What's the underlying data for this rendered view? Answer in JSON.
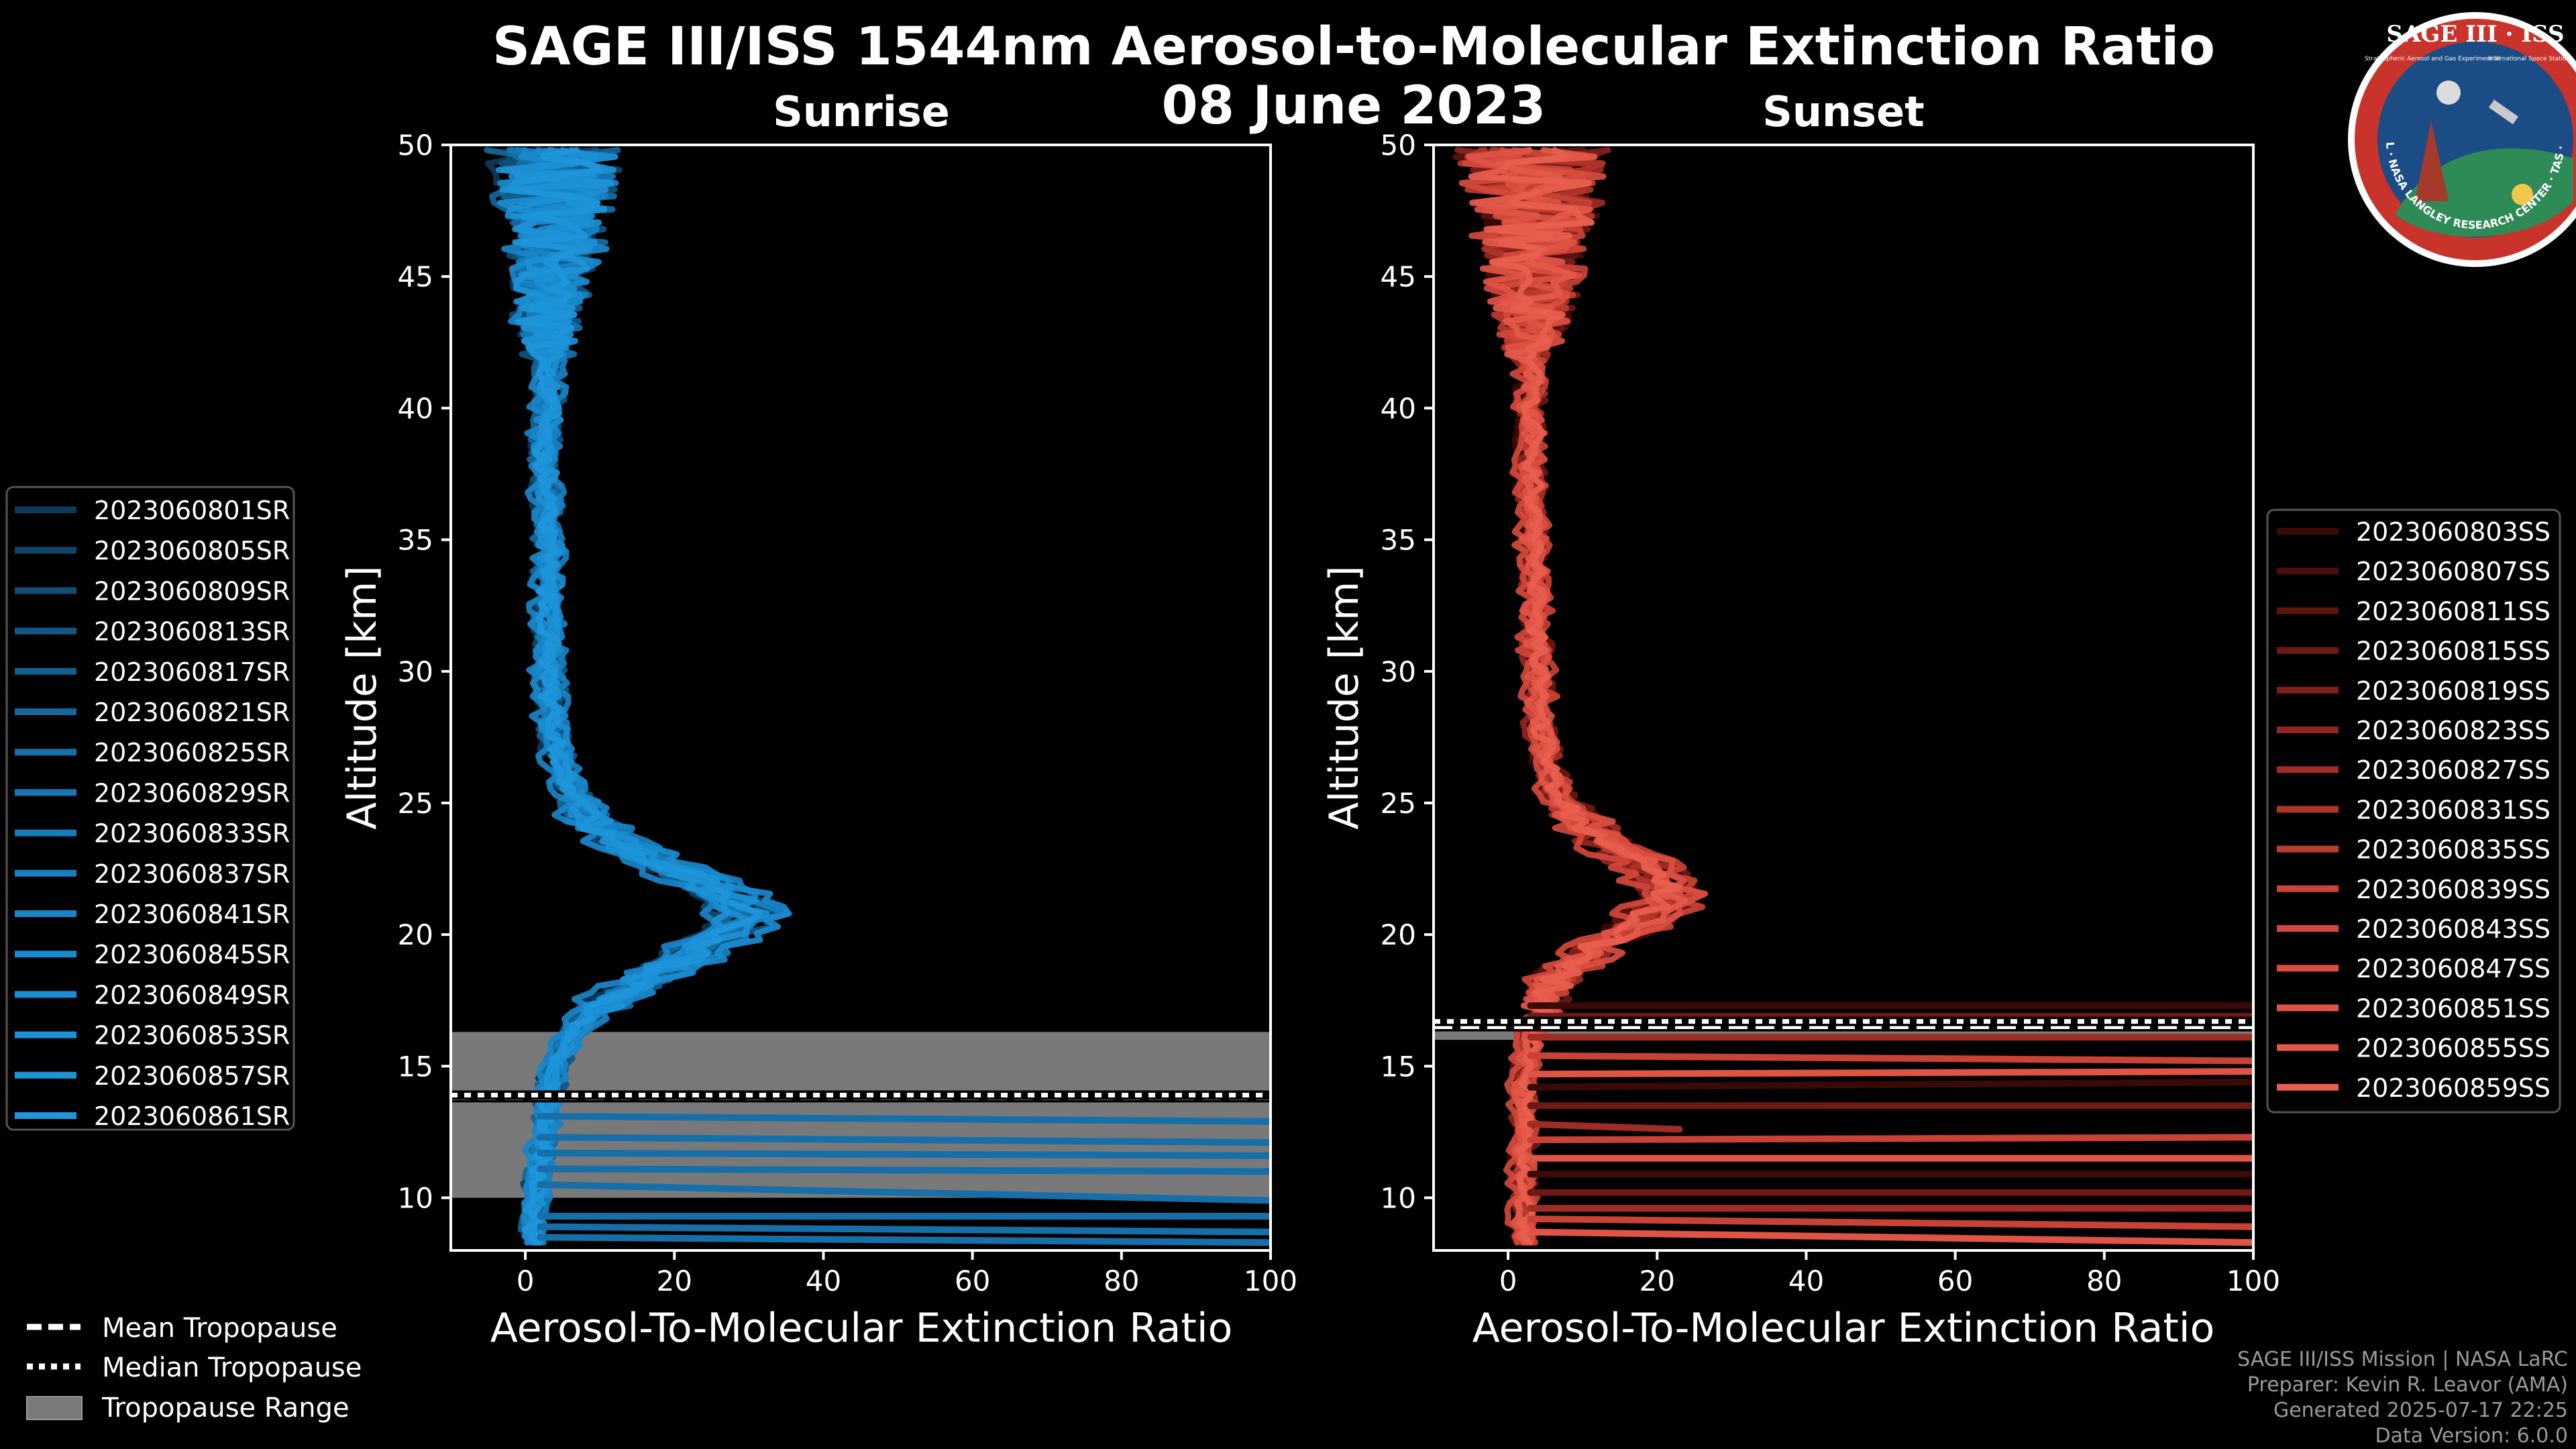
{
  "title": "SAGE III/ISS 1544nm Aerosol-to-Molecular Extinction Ratio",
  "date": "08 June 2023",
  "logo": {
    "name": "SAGE III · ISS",
    "subtitle_left": "Stratospheric Aerosol and Gas Experiment III",
    "subtitle_right": "International Space Station",
    "ring_text": "BALL · NASA LANGLEY RESEARCH CENTER · TAS · ESA"
  },
  "credits": [
    "SAGE III/ISS Mission | NASA LaRC",
    "Preparer: Kevin R. Leavor (AMA)",
    "Generated 2025-07-17 22:25",
    "Data Version: 6.0.0"
  ],
  "tropopause_legend": [
    {
      "label": "Mean Tropopause",
      "style": "dashed"
    },
    {
      "label": "Median Tropopause",
      "style": "dotted"
    },
    {
      "label": "Tropopause Range",
      "style": "patch"
    }
  ],
  "chart_data": [
    {
      "type": "line",
      "title": "Sunrise",
      "xlabel": "Aerosol-To-Molecular Extinction Ratio",
      "ylabel": "Altitude [km]",
      "xlim": [
        -10,
        100
      ],
      "ylim": [
        8,
        50
      ],
      "xticks": [
        0,
        20,
        40,
        60,
        80,
        100
      ],
      "yticks": [
        10,
        15,
        20,
        25,
        30,
        35,
        40,
        45,
        50
      ],
      "color": "#1f8fd0",
      "tropopause": {
        "mean": 13.8,
        "median": 13.9,
        "min": 10.0,
        "max": 16.3
      },
      "altitude": [
        8.5,
        9.5,
        10.5,
        11.5,
        12.5,
        13.5,
        14.5,
        15.5,
        16.5,
        17.5,
        18.5,
        19.5,
        20.5,
        21.5,
        22.5,
        23.5,
        24.5,
        25.5,
        26.5,
        28,
        30,
        32,
        34,
        36,
        38,
        40,
        42,
        44,
        46,
        48,
        50
      ],
      "mean_profile": [
        1,
        1,
        1.5,
        2,
        2.5,
        3,
        3.5,
        4.5,
        7,
        11,
        17,
        24,
        29,
        27,
        20,
        12,
        8,
        6,
        4.5,
        3.5,
        3,
        3,
        3,
        3,
        2.5,
        3,
        3,
        3,
        4,
        4,
        4
      ],
      "spike_amplitude": 6,
      "series": [
        {
          "name": "2023060801SR",
          "shift": -2.0,
          "scale": 0.95,
          "color": "#0d3a5c"
        },
        {
          "name": "2023060805SR",
          "shift": 1.0,
          "scale": 1.05,
          "color": "#0f4468"
        },
        {
          "name": "2023060809SR",
          "shift": -1.0,
          "scale": 0.9,
          "color": "#104e76"
        },
        {
          "name": "2023060813SR",
          "shift": 2.0,
          "scale": 1.1,
          "color": "#125783"
        },
        {
          "name": "2023060817SR",
          "shift": 0.0,
          "scale": 1.0,
          "color": "#136090"
        },
        {
          "name": "2023060821SR",
          "shift": -1.5,
          "scale": 0.92,
          "color": "#14689c"
        },
        {
          "name": "2023060825SR",
          "shift": 1.5,
          "scale": 1.08,
          "color": "#1570a8"
        },
        {
          "name": "2023060829SR",
          "shift": 0.5,
          "scale": 0.98,
          "color": "#1676b2"
        },
        {
          "name": "2023060833SR",
          "shift": -0.5,
          "scale": 1.02,
          "color": "#177cbb"
        },
        {
          "name": "2023060837SR",
          "shift": 2.5,
          "scale": 1.12,
          "color": "#1881c3"
        },
        {
          "name": "2023060841SR",
          "shift": -2.5,
          "scale": 0.88,
          "color": "#1986ca"
        },
        {
          "name": "2023060845SR",
          "shift": 1.0,
          "scale": 1.15,
          "color": "#1a8acf"
        },
        {
          "name": "2023060849SR",
          "shift": -1.0,
          "scale": 1.0,
          "color": "#1b8dd2"
        },
        {
          "name": "2023060853SR",
          "shift": 0.0,
          "scale": 1.06,
          "color": "#1c90d5"
        },
        {
          "name": "2023060857SR",
          "shift": 1.5,
          "scale": 0.94,
          "color": "#1d93d8"
        },
        {
          "name": "2023060861SR",
          "shift": -0.5,
          "scale": 1.03,
          "color": "#1e96da"
        }
      ],
      "low_level_excursions": [
        {
          "y0": 13.1,
          "y1": 12.9,
          "x1": 100
        },
        {
          "y0": 12.3,
          "y1": 12.1,
          "x1": 100
        },
        {
          "y0": 11.7,
          "y1": 11.6,
          "x1": 100
        },
        {
          "y0": 11.1,
          "y1": 11.0,
          "x1": 100
        },
        {
          "y0": 10.5,
          "y1": 9.9,
          "x1": 100
        },
        {
          "y0": 9.3,
          "y1": 9.3,
          "x1": 100
        },
        {
          "y0": 8.9,
          "y1": 8.7,
          "x1": 100
        },
        {
          "y0": 8.5,
          "y1": 8.3,
          "x1": 100
        }
      ]
    },
    {
      "type": "line",
      "title": "Sunset",
      "xlabel": "Aerosol-To-Molecular Extinction Ratio",
      "ylabel": "Altitude [km]",
      "xlim": [
        -10,
        100
      ],
      "ylim": [
        8,
        50
      ],
      "xticks": [
        0,
        20,
        40,
        60,
        80,
        100
      ],
      "yticks": [
        10,
        15,
        20,
        25,
        30,
        35,
        40,
        45,
        50
      ],
      "color": "#e5584a",
      "tropopause": {
        "mean": 16.5,
        "median": 16.7,
        "min": 16.0,
        "max": 16.8
      },
      "altitude": [
        8.5,
        9.5,
        10.5,
        11.5,
        12.5,
        13.5,
        14.5,
        15.5,
        16.5,
        17.5,
        18.5,
        19.5,
        20.5,
        21.5,
        22.5,
        23.5,
        24.5,
        25.5,
        26.5,
        28,
        30,
        32,
        34,
        36,
        38,
        40,
        42,
        44,
        46,
        48,
        50
      ],
      "mean_profile": [
        2,
        2,
        2,
        2,
        2,
        2,
        2,
        2.5,
        3,
        4.5,
        7,
        12,
        18,
        22,
        19,
        13,
        9,
        6,
        5,
        4,
        4,
        3.5,
        3.5,
        3,
        3,
        3,
        3,
        3,
        3,
        3.5,
        3.5
      ],
      "spike_amplitude": 7,
      "series": [
        {
          "name": "2023060803SS",
          "shift": -2.0,
          "scale": 0.95,
          "color": "#3a0a09"
        },
        {
          "name": "2023060807SS",
          "shift": 1.0,
          "scale": 1.05,
          "color": "#4a0e0c"
        },
        {
          "name": "2023060811SS",
          "shift": -1.0,
          "scale": 0.9,
          "color": "#5c1410"
        },
        {
          "name": "2023060815SS",
          "shift": 2.0,
          "scale": 1.1,
          "color": "#6d1914"
        },
        {
          "name": "2023060819SS",
          "shift": 0.0,
          "scale": 1.0,
          "color": "#7f1f19"
        },
        {
          "name": "2023060823SS",
          "shift": -1.5,
          "scale": 0.92,
          "color": "#90261e"
        },
        {
          "name": "2023060827SS",
          "shift": 1.5,
          "scale": 1.08,
          "color": "#a02d24"
        },
        {
          "name": "2023060831SS",
          "shift": 0.5,
          "scale": 0.98,
          "color": "#af3429"
        },
        {
          "name": "2023060835SS",
          "shift": -0.5,
          "scale": 1.02,
          "color": "#bc3b2f"
        },
        {
          "name": "2023060839SS",
          "shift": 2.5,
          "scale": 1.12,
          "color": "#c84235"
        },
        {
          "name": "2023060843SS",
          "shift": -2.5,
          "scale": 0.88,
          "color": "#d2483b"
        },
        {
          "name": "2023060847SS",
          "shift": 1.0,
          "scale": 1.15,
          "color": "#da4e40"
        },
        {
          "name": "2023060851SS",
          "shift": -1.0,
          "scale": 1.0,
          "color": "#e05445"
        },
        {
          "name": "2023060855SS",
          "shift": 0.0,
          "scale": 1.06,
          "color": "#e4594a"
        },
        {
          "name": "2023060859SS",
          "shift": 1.5,
          "scale": 0.94,
          "color": "#e85e4f"
        }
      ],
      "low_level_excursions": [
        {
          "y0": 17.3,
          "y1": 17.3,
          "x1": 100
        },
        {
          "y0": 16.9,
          "y1": 16.9,
          "x1": 100
        },
        {
          "y0": 16.1,
          "y1": 16.1,
          "x1": 100
        },
        {
          "y0": 15.4,
          "y1": 15.2,
          "x1": 100
        },
        {
          "y0": 14.7,
          "y1": 14.8,
          "x1": 100
        },
        {
          "y0": 14.2,
          "y1": 14.4,
          "x1": 100
        },
        {
          "y0": 13.5,
          "y1": 13.5,
          "x1": 100
        },
        {
          "y0": 12.8,
          "y1": 12.6,
          "x1": 23
        },
        {
          "y0": 12.2,
          "y1": 12.3,
          "x1": 100
        },
        {
          "y0": 11.5,
          "y1": 11.5,
          "x1": 100
        },
        {
          "y0": 10.9,
          "y1": 10.9,
          "x1": 100
        },
        {
          "y0": 10.2,
          "y1": 10.2,
          "x1": 100
        },
        {
          "y0": 9.6,
          "y1": 9.6,
          "x1": 100
        },
        {
          "y0": 9.2,
          "y1": 8.9,
          "x1": 100
        },
        {
          "y0": 8.7,
          "y1": 8.3,
          "x1": 100
        }
      ]
    }
  ]
}
